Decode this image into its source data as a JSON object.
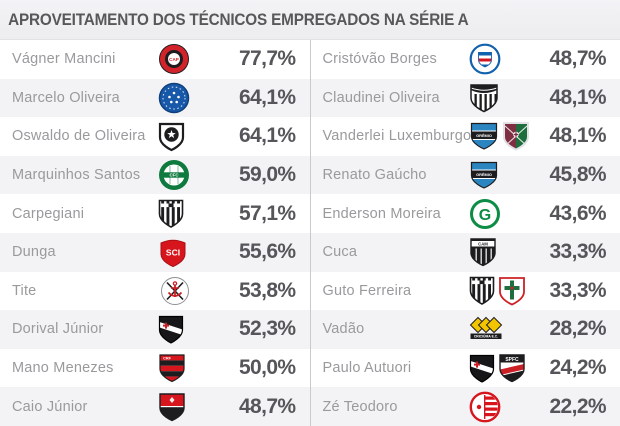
{
  "title": "APROVEITAMENTO DOS TÉCNICOS EMPREGADOS NA SÉRIE A",
  "colors": {
    "header_bg": "#f0f0f3",
    "row_alt_bg": "#f3f3f5",
    "divider": "#c9c9cc",
    "title_color": "#58585b",
    "name_color": "#9a9a9d",
    "value_color": "#55555a"
  },
  "columns": [
    {
      "rows": [
        {
          "name": "Vágner Mancini",
          "crests": "atletico-pr",
          "value": "77,7%"
        },
        {
          "name": "Marcelo Oliveira",
          "crests": "cruzeiro",
          "value": "64,1%"
        },
        {
          "name": "Oswaldo de Oliveira",
          "crests": "botafogo",
          "value": "64,1%"
        },
        {
          "name": "Marquinhos Santos",
          "crests": "coritiba",
          "value": "59,0%"
        },
        {
          "name": "Carpegiani",
          "crests": "ponte-preta",
          "value": "57,1%"
        },
        {
          "name": "Dunga",
          "crests": "internacional",
          "value": "55,6%"
        },
        {
          "name": "Tite",
          "crests": "corinthians",
          "value": "53,8%"
        },
        {
          "name": "Dorival Júnior",
          "crests": "vasco",
          "value": "52,3%"
        },
        {
          "name": "Mano Menezes",
          "crests": "flamengo",
          "value": "50,0%"
        },
        {
          "name": "Caio Júnior",
          "crests": "vitoria",
          "value": "48,7%"
        }
      ]
    },
    {
      "rows": [
        {
          "name": "Cristóvão Borges",
          "crests": "bahia",
          "value": "48,7%"
        },
        {
          "name": "Claudinei Oliveira",
          "crests": "santos",
          "value": "48,1%"
        },
        {
          "name": "Vanderlei Luxemburgo",
          "crests": "gremio fluminense",
          "value": "48,1%"
        },
        {
          "name": "Renato Gaúcho",
          "crests": "gremio",
          "value": "45,8%"
        },
        {
          "name": "Enderson Moreira",
          "crests": "goias",
          "value": "43,6%"
        },
        {
          "name": "Cuca",
          "crests": "atletico-mg",
          "value": "33,3%"
        },
        {
          "name": "Guto Ferreira",
          "crests": "ponte-preta portuguesa",
          "value": "33,3%"
        },
        {
          "name": "Vadão",
          "crests": "criciuma",
          "value": "28,2%"
        },
        {
          "name": "Paulo Autuori",
          "crests": "vasco sao-paulo",
          "value": "24,2%"
        },
        {
          "name": "Zé Teodoro",
          "crests": "nautico",
          "value": "22,2%"
        }
      ]
    }
  ],
  "clubs": {
    "atletico-pr": {
      "colors": [
        "#d2232a",
        "#1d1d1f"
      ],
      "label": "CAP"
    },
    "cruzeiro": {
      "colors": [
        "#1858a8",
        "#10407c"
      ],
      "label": ""
    },
    "botafogo": {
      "colors": [
        "#1d1d1f",
        "#ffffff"
      ],
      "label": ""
    },
    "coritiba": {
      "colors": [
        "#0e7a3e",
        "#ffffff"
      ],
      "label": "CFC"
    },
    "ponte-preta": {
      "colors": [
        "#1d1d1f",
        "#ffffff"
      ],
      "label": ""
    },
    "internacional": {
      "colors": [
        "#d6151c",
        "#a80f14"
      ],
      "label": "SCI"
    },
    "corinthians": {
      "colors": [
        "#cc2027",
        "#1d1d1f"
      ],
      "label": ""
    },
    "vasco": {
      "colors": [
        "#17171a",
        "#cc2027"
      ],
      "label": ""
    },
    "flamengo": {
      "colors": [
        "#d6151c",
        "#1d1d1f"
      ],
      "label": "CRF"
    },
    "vitoria": {
      "colors": [
        "#d6151c",
        "#1d1d1f"
      ],
      "label": ""
    },
    "bahia": {
      "colors": [
        "#1261ac",
        "#d6151c"
      ],
      "label": ""
    },
    "santos": {
      "colors": [
        "#1d1d1f",
        "#ffffff"
      ],
      "label": ""
    },
    "gremio": {
      "colors": [
        "#2a85c0",
        "#1d1d1f"
      ],
      "label": "GRÊMIO"
    },
    "fluminense": {
      "colors": [
        "#7e2f42",
        "#1e6f3d"
      ],
      "label": ""
    },
    "goias": {
      "colors": [
        "#0c8c44",
        "#ffffff"
      ],
      "label": "G"
    },
    "atletico-mg": {
      "colors": [
        "#1d1d1f",
        "#ffffff"
      ],
      "label": "CAM"
    },
    "portuguesa": {
      "colors": [
        "#cc2027",
        "#1e6f3d"
      ],
      "label": ""
    },
    "criciuma": {
      "colors": [
        "#f2c500",
        "#1d1d1f"
      ],
      "label": "CRICIÚMA E.C."
    },
    "sao-paulo": {
      "colors": [
        "#cc2027",
        "#1d1d1f"
      ],
      "label": "SPFC"
    },
    "nautico": {
      "colors": [
        "#d6151c",
        "#ffffff"
      ],
      "label": ""
    }
  }
}
